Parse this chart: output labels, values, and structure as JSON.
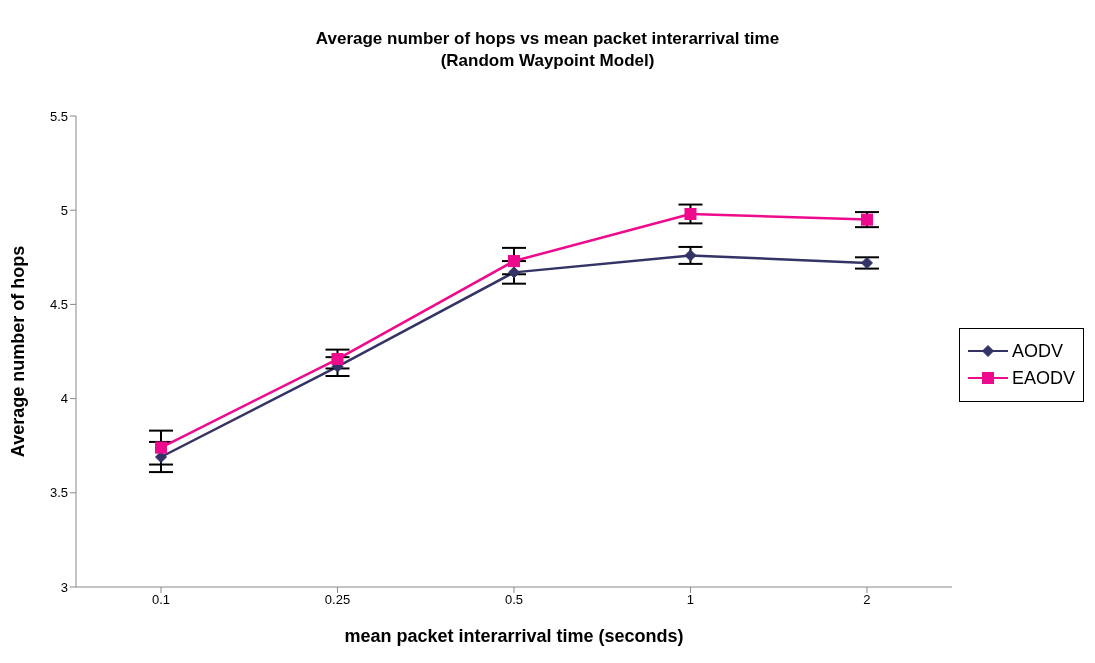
{
  "chart_data": {
    "type": "line",
    "title": "Average number of hops vs mean packet interarrival time",
    "subtitle": "(Random Waypoint Model)",
    "xlabel": "mean packet interarrival time (seconds)",
    "ylabel": "Average number of hops",
    "categories": [
      "0.1",
      "0.25",
      "0.5",
      "1",
      "2"
    ],
    "series": [
      {
        "name": "AODV",
        "color": "#333366",
        "marker": "diamond",
        "values": [
          3.69,
          4.17,
          4.67,
          4.76,
          4.72
        ],
        "errors": [
          0.08,
          0.05,
          0.06,
          0.045,
          0.03
        ]
      },
      {
        "name": "EAODV",
        "color": "#ee0a8c",
        "marker": "square",
        "values": [
          3.74,
          4.21,
          4.73,
          4.98,
          4.95
        ],
        "errors": [
          0.09,
          0.05,
          0.07,
          0.05,
          0.04
        ]
      }
    ],
    "ylim": [
      3,
      5.5
    ],
    "yticks": [
      3,
      3.5,
      4,
      4.5,
      5,
      5.5
    ],
    "grid": false,
    "legend": "right"
  }
}
